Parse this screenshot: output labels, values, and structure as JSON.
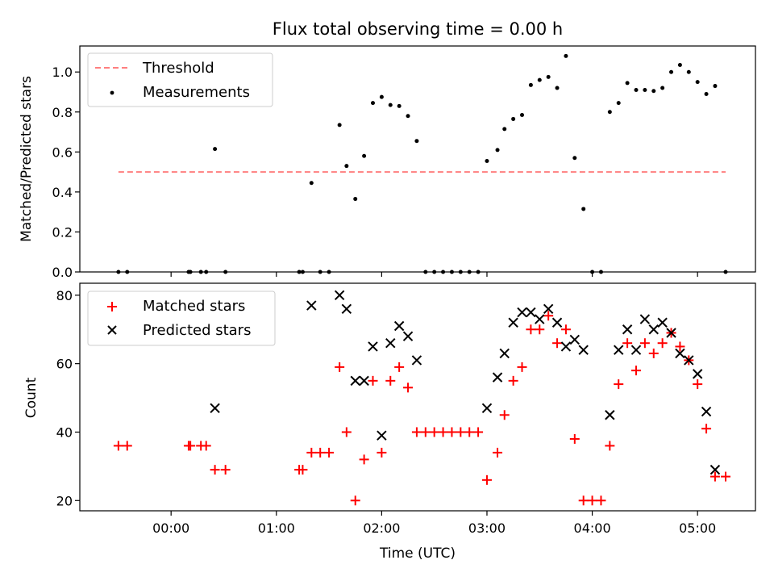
{
  "figure": {
    "title": "Flux total observing time = 0.00 h"
  },
  "chart_data": [
    {
      "type": "scatter",
      "ylabel": "Matched/Predicted stars",
      "xlim": [
        "23:08",
        "05:33"
      ],
      "ylim": [
        0,
        1.13
      ],
      "yticks": [
        0.0,
        0.2,
        0.4,
        0.6,
        0.8,
        1.0
      ],
      "ytick_labels": [
        "0.0",
        "0.2",
        "0.4",
        "0.6",
        "0.8",
        "1.0"
      ],
      "legend": {
        "placement": "upper-left",
        "entries": [
          {
            "label": "Threshold",
            "style": "dashed-line",
            "color": "#ff7f7f"
          },
          {
            "label": "Measurements",
            "style": "dot",
            "color": "#000000"
          }
        ]
      },
      "threshold": {
        "y": 0.5,
        "x_start": "23:30",
        "x_end": "05:16"
      },
      "series": [
        {
          "name": "Measurements",
          "color": "#000000",
          "points": [
            [
              "23:30",
              0
            ],
            [
              "23:35",
              0
            ],
            [
              "00:10",
              0
            ],
            [
              "00:11",
              0
            ],
            [
              "00:17",
              0
            ],
            [
              "00:20",
              0
            ],
            [
              "00:25",
              0.615
            ],
            [
              "00:31",
              0
            ],
            [
              "01:13",
              0
            ],
            [
              "01:15",
              0
            ],
            [
              "01:20",
              0.445
            ],
            [
              "01:25",
              0
            ],
            [
              "01:30",
              0
            ],
            [
              "01:36",
              0.735
            ],
            [
              "01:40",
              0.53
            ],
            [
              "01:45",
              0.365
            ],
            [
              "01:50",
              0.58
            ],
            [
              "01:55",
              0.845
            ],
            [
              "02:00",
              0.875
            ],
            [
              "02:05",
              0.835
            ],
            [
              "02:10",
              0.83
            ],
            [
              "02:15",
              0.78
            ],
            [
              "02:20",
              0.655
            ],
            [
              "02:25",
              0
            ],
            [
              "02:30",
              0
            ],
            [
              "02:35",
              0
            ],
            [
              "02:40",
              0
            ],
            [
              "02:45",
              0
            ],
            [
              "02:50",
              0
            ],
            [
              "02:55",
              0
            ],
            [
              "03:00",
              0.555
            ],
            [
              "03:06",
              0.61
            ],
            [
              "03:10",
              0.715
            ],
            [
              "03:15",
              0.765
            ],
            [
              "03:20",
              0.785
            ],
            [
              "03:25",
              0.935
            ],
            [
              "03:30",
              0.96
            ],
            [
              "03:35",
              0.975
            ],
            [
              "03:40",
              0.92
            ],
            [
              "03:45",
              1.08
            ],
            [
              "03:50",
              0.57
            ],
            [
              "03:55",
              0.315
            ],
            [
              "04:00",
              0
            ],
            [
              "04:05",
              0
            ],
            [
              "04:10",
              0.8
            ],
            [
              "04:15",
              0.845
            ],
            [
              "04:20",
              0.945
            ],
            [
              "04:25",
              0.91
            ],
            [
              "04:30",
              0.91
            ],
            [
              "04:35",
              0.905
            ],
            [
              "04:40",
              0.92
            ],
            [
              "04:45",
              1.0
            ],
            [
              "04:50",
              1.035
            ],
            [
              "04:55",
              1.0
            ],
            [
              "05:00",
              0.95
            ],
            [
              "05:05",
              0.89
            ],
            [
              "05:10",
              0.93
            ],
            [
              "05:16",
              0
            ]
          ]
        }
      ]
    },
    {
      "type": "scatter",
      "xlabel": "Time (UTC)",
      "ylabel": "Count",
      "xlim": [
        "23:08",
        "05:33"
      ],
      "ylim": [
        17,
        83.5
      ],
      "xticks": [
        "00:00",
        "01:00",
        "02:00",
        "03:00",
        "04:00",
        "05:00"
      ],
      "yticks": [
        20,
        40,
        60,
        80
      ],
      "ytick_labels": [
        "20",
        "40",
        "60",
        "80"
      ],
      "legend": {
        "placement": "upper-left",
        "entries": [
          {
            "label": "Matched stars",
            "style": "plus",
            "color": "#ff0000"
          },
          {
            "label": "Predicted stars",
            "style": "x",
            "color": "#000000"
          }
        ]
      },
      "series": [
        {
          "name": "Matched stars",
          "marker": "plus",
          "color": "#ff0000",
          "points": [
            [
              "23:30",
              36
            ],
            [
              "23:35",
              36
            ],
            [
              "00:10",
              36
            ],
            [
              "00:11",
              36
            ],
            [
              "00:17",
              36
            ],
            [
              "00:20",
              36
            ],
            [
              "00:25",
              29
            ],
            [
              "00:31",
              29
            ],
            [
              "01:13",
              29
            ],
            [
              "01:15",
              29
            ],
            [
              "01:20",
              34
            ],
            [
              "01:25",
              34
            ],
            [
              "01:30",
              34
            ],
            [
              "01:36",
              59
            ],
            [
              "01:40",
              40
            ],
            [
              "01:45",
              20
            ],
            [
              "01:50",
              32
            ],
            [
              "01:55",
              55
            ],
            [
              "02:00",
              34
            ],
            [
              "02:05",
              55
            ],
            [
              "02:10",
              59
            ],
            [
              "02:15",
              53
            ],
            [
              "02:20",
              40
            ],
            [
              "02:25",
              40
            ],
            [
              "02:30",
              40
            ],
            [
              "02:35",
              40
            ],
            [
              "02:40",
              40
            ],
            [
              "02:45",
              40
            ],
            [
              "02:50",
              40
            ],
            [
              "02:55",
              40
            ],
            [
              "03:00",
              26
            ],
            [
              "03:06",
              34
            ],
            [
              "03:10",
              45
            ],
            [
              "03:15",
              55
            ],
            [
              "03:20",
              59
            ],
            [
              "03:25",
              70
            ],
            [
              "03:30",
              70
            ],
            [
              "03:35",
              74
            ],
            [
              "03:40",
              66
            ],
            [
              "03:45",
              70
            ],
            [
              "03:50",
              38
            ],
            [
              "03:55",
              20
            ],
            [
              "04:00",
              20
            ],
            [
              "04:05",
              20
            ],
            [
              "04:10",
              36
            ],
            [
              "04:15",
              54
            ],
            [
              "04:20",
              66
            ],
            [
              "04:25",
              58
            ],
            [
              "04:30",
              66
            ],
            [
              "04:35",
              63
            ],
            [
              "04:40",
              66
            ],
            [
              "04:45",
              69
            ],
            [
              "04:50",
              65
            ],
            [
              "04:55",
              61
            ],
            [
              "05:00",
              54
            ],
            [
              "05:05",
              41
            ],
            [
              "05:10",
              27
            ],
            [
              "05:16",
              27
            ]
          ]
        },
        {
          "name": "Predicted stars",
          "marker": "x",
          "color": "#000000",
          "points": [
            [
              "00:25",
              47
            ],
            [
              "01:20",
              77
            ],
            [
              "01:36",
              80
            ],
            [
              "01:40",
              76
            ],
            [
              "01:45",
              55
            ],
            [
              "01:50",
              55
            ],
            [
              "01:55",
              65
            ],
            [
              "02:00",
              39
            ],
            [
              "02:05",
              66
            ],
            [
              "02:10",
              71
            ],
            [
              "02:15",
              68
            ],
            [
              "02:20",
              61
            ],
            [
              "03:00",
              47
            ],
            [
              "03:06",
              56
            ],
            [
              "03:10",
              63
            ],
            [
              "03:15",
              72
            ],
            [
              "03:20",
              75
            ],
            [
              "03:25",
              75
            ],
            [
              "03:30",
              73
            ],
            [
              "03:35",
              76
            ],
            [
              "03:40",
              72
            ],
            [
              "03:45",
              65
            ],
            [
              "03:50",
              67
            ],
            [
              "03:55",
              64
            ],
            [
              "04:10",
              45
            ],
            [
              "04:15",
              64
            ],
            [
              "04:20",
              70
            ],
            [
              "04:25",
              64
            ],
            [
              "04:30",
              73
            ],
            [
              "04:35",
              70
            ],
            [
              "04:40",
              72
            ],
            [
              "04:45",
              69
            ],
            [
              "04:50",
              63
            ],
            [
              "04:55",
              61
            ],
            [
              "05:00",
              57
            ],
            [
              "05:05",
              46
            ],
            [
              "05:10",
              29
            ]
          ]
        }
      ]
    }
  ]
}
